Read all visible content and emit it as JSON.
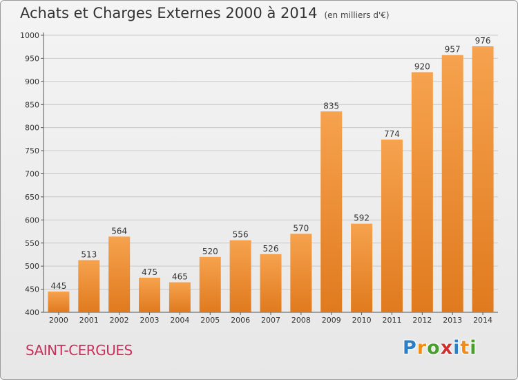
{
  "title": "Achats et Charges Externes 2000 à 2014",
  "unit": "(en milliers d'€)",
  "city": "SAINT-CERGUES",
  "logo": {
    "letters": [
      "P",
      "r",
      "o",
      "x",
      "i",
      "t",
      "i"
    ],
    "colors": [
      "#2b7fc5",
      "#f28c18",
      "#4a9e2f",
      "#d42f2f",
      "#2b7fc5",
      "#f28c18",
      "#4a9e2f"
    ]
  },
  "colors": {
    "bar_top": "#f6a24e",
    "bar_bottom": "#e07a1e",
    "grid": "#c8c8c8",
    "axis": "#555555"
  },
  "chart_data": {
    "type": "bar",
    "title": "Achats et Charges Externes 2000 à 2014",
    "ylabel": "(en milliers d'€)",
    "xlabel": "",
    "categories": [
      "2000",
      "2001",
      "2002",
      "2003",
      "2004",
      "2005",
      "2006",
      "2007",
      "2008",
      "2009",
      "2010",
      "2011",
      "2012",
      "2013",
      "2014"
    ],
    "values": [
      445,
      513,
      564,
      475,
      465,
      520,
      556,
      526,
      570,
      835,
      592,
      774,
      920,
      957,
      976
    ],
    "ylim": [
      400,
      1000
    ],
    "yticks": [
      400,
      450,
      500,
      550,
      600,
      650,
      700,
      750,
      800,
      850,
      900,
      950,
      1000
    ],
    "grid": true
  }
}
